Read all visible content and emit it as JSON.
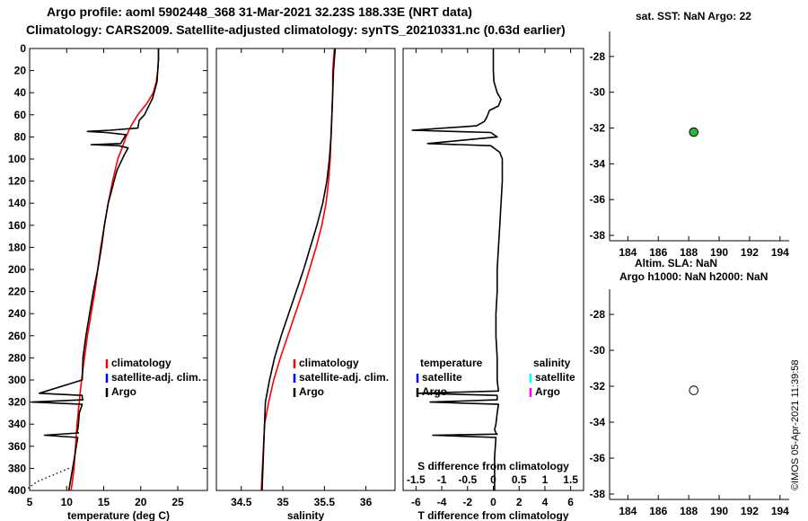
{
  "header": {
    "title_line1": "Argo profile: aoml 5902448_368 31-Mar-2021 32.23S 188.33E (NRT data)",
    "title_line2": "Climatology: CARS2009. Satellite-adjusted climatology: synTS_20210331.nc (0.63d earlier)"
  },
  "stamp": "©IMOS 05-Apr-2021 11:39:58",
  "colors": {
    "climatology": "#ff0000",
    "satellite": "#0000ff",
    "argo": "#000000",
    "satellite_salinity": "#00ffff",
    "argo_salinity": "#ff00ff",
    "map_marker": "#2db82d"
  },
  "chart_data": [
    {
      "type": "line",
      "xlabel": "temperature (deg C)",
      "ylabel": "",
      "xlim": [
        5,
        29
      ],
      "ylim": [
        400,
        0
      ],
      "x_ticks": [
        5,
        10,
        15,
        20,
        25
      ],
      "y_ticks": [
        0,
        20,
        40,
        60,
        80,
        100,
        120,
        140,
        160,
        180,
        200,
        220,
        240,
        260,
        280,
        300,
        320,
        340,
        360,
        380,
        400
      ],
      "legend": [
        "climatology",
        "satellite-adj. clim.",
        "Argo"
      ],
      "legend_position": "lower-right",
      "series": [
        {
          "name": "climatology",
          "color": "#ff0000",
          "x": [
            22.4,
            22.4,
            22.3,
            22.1,
            21.7,
            20.8,
            19.6,
            18.7,
            18.0,
            17.5,
            16.9,
            16.2,
            15.6,
            15.1,
            14.6,
            14.2,
            13.8,
            13.3,
            12.8,
            12.4,
            12.0,
            11.7,
            11.4,
            11.2,
            11.0,
            10.8,
            10.6
          ],
          "y": [
            0,
            10,
            20,
            30,
            40,
            50,
            60,
            70,
            80,
            90,
            100,
            120,
            140,
            160,
            180,
            200,
            220,
            240,
            260,
            280,
            300,
            320,
            340,
            360,
            380,
            390,
            400
          ]
        },
        {
          "name": "Argo",
          "color": "#000000",
          "x": [
            22.4,
            22.4,
            22.3,
            22.2,
            21.6,
            20.5,
            19.8,
            19.6,
            15.8,
            12.8,
            15.3,
            18.0,
            17.3,
            13.3,
            17.0,
            18.3,
            17.8,
            16.8,
            16.4,
            16.0,
            15.6,
            15.1,
            14.7,
            14.2,
            13.6,
            13.1,
            12.6,
            12.2,
            12.1,
            6.3,
            12.1,
            12.1,
            12.2,
            5.3,
            12.1,
            11.7,
            11.6,
            11.5,
            11.4,
            11.4,
            11.6,
            7.0,
            11.5,
            11.3,
            10.8,
            10.3
          ],
          "y": [
            0,
            10,
            20,
            30,
            45,
            60,
            65,
            72,
            74,
            75,
            76,
            78,
            86,
            87,
            88,
            90,
            96,
            110,
            120,
            130,
            140,
            160,
            180,
            200,
            220,
            240,
            260,
            280,
            300,
            312,
            314,
            316,
            318,
            320,
            322,
            330,
            340,
            345,
            346,
            347,
            348,
            350,
            352,
            360,
            380,
            400
          ]
        },
        {
          "name": "",
          "color": "#000000",
          "dotted": true,
          "x": [
            10.3,
            6.0,
            4.8
          ],
          "y": [
            380,
            392,
            398
          ]
        }
      ]
    },
    {
      "type": "line",
      "xlabel": "salinity",
      "ylabel": "",
      "xlim": [
        34.2,
        36.35
      ],
      "ylim": [
        400,
        0
      ],
      "x_ticks": [
        34.5,
        35,
        35.5,
        36
      ],
      "x_tick_labels": [
        "34.5",
        "35",
        "35.5",
        "36"
      ],
      "legend": [
        "climatology",
        "satellite-adj. clim.",
        "Argo"
      ],
      "legend_position": "lower-right",
      "series": [
        {
          "name": "climatology",
          "color": "#ff0000",
          "x": [
            35.62,
            35.61,
            35.6,
            35.6,
            35.59,
            35.58,
            35.57,
            35.55,
            35.52,
            35.47,
            35.4,
            35.32,
            35.24,
            35.15,
            35.06,
            34.97,
            34.89,
            34.83,
            34.78,
            34.74
          ],
          "y": [
            0,
            10,
            20,
            40,
            60,
            80,
            100,
            120,
            140,
            160,
            180,
            200,
            220,
            240,
            260,
            280,
            300,
            320,
            340,
            400
          ]
        },
        {
          "name": "Argo",
          "color": "#000000",
          "x": [
            35.63,
            35.62,
            35.61,
            35.6,
            35.59,
            35.58,
            35.56,
            35.53,
            35.48,
            35.41,
            35.33,
            35.25,
            35.16,
            35.07,
            34.98,
            34.9,
            34.84,
            34.79,
            34.75
          ],
          "y": [
            0,
            10,
            20,
            40,
            60,
            80,
            100,
            120,
            140,
            160,
            180,
            200,
            220,
            240,
            260,
            280,
            300,
            320,
            400
          ]
        }
      ]
    },
    {
      "type": "line",
      "xlabel": "T difference from climatology",
      "xlabel_top": "S difference from climatology",
      "xlim": [
        -7,
        7
      ],
      "ylim": [
        400,
        0
      ],
      "x_ticks": [
        -6,
        -4,
        -2,
        0,
        2,
        4,
        6
      ],
      "x_tick_labels": [
        "-6",
        "-4",
        "-2",
        "0",
        "2",
        "4",
        "6"
      ],
      "s_ticks": [
        -1.5,
        -1,
        -0.5,
        0,
        0.5,
        1,
        1.5
      ],
      "s_tick_labels": [
        "-1.5",
        "-1",
        "-0.5",
        "0",
        "0.5",
        "1",
        "1.5"
      ],
      "legend_groups": [
        {
          "heading": "temperature",
          "items": [
            "satellite",
            "Argo"
          ]
        },
        {
          "heading": "salinity",
          "items": [
            "satellite",
            "Argo"
          ]
        }
      ],
      "legend_position": "lower",
      "series": [
        {
          "name": "temperature Argo",
          "color": "#000000",
          "x": [
            0,
            0,
            0.05,
            0.3,
            0.6,
            0.4,
            -0.3,
            -0.5,
            -0.7,
            -1.3,
            -6.3,
            -0.2,
            0.3,
            -5.1,
            -0.2,
            0.5,
            0.7,
            0.7,
            0.6,
            0.5,
            0.4,
            0.3,
            0.3,
            0.2,
            0.2,
            0.3,
            0.3,
            0.4,
            -5.8,
            0.3,
            0.3,
            -4.9,
            0.4,
            0.3,
            0.2,
            0.1,
            0.2,
            0.3,
            -4.7,
            0.2,
            0.1,
            0.1
          ],
          "y": [
            0,
            20,
            30,
            40,
            46,
            52,
            56,
            62,
            66,
            70,
            74,
            76,
            80,
            86,
            88,
            94,
            100,
            120,
            140,
            160,
            180,
            200,
            220,
            240,
            260,
            280,
            300,
            310,
            312,
            314,
            318,
            320,
            322,
            330,
            340,
            345,
            348,
            349,
            350,
            352,
            370,
            400
          ]
        }
      ]
    },
    {
      "type": "scatter",
      "title": "sat. SST: NaN Argo: 22",
      "xlim": [
        182.8,
        194.6
      ],
      "ylim": [
        -38.3,
        -26.6
      ],
      "x_ticks": [
        184,
        186,
        188,
        190,
        192,
        194
      ],
      "y_ticks": [
        -28,
        -30,
        -32,
        -34,
        -36,
        -38
      ],
      "points": [
        {
          "x": 188.33,
          "y": -32.23,
          "color": "#2db82d"
        }
      ]
    },
    {
      "type": "scatter",
      "title": "Altim. SLA: NaN",
      "subtitle": "Argo h1000: NaN h2000: NaN",
      "xlim": [
        182.8,
        194.6
      ],
      "ylim": [
        -38.3,
        -26.6
      ],
      "x_ticks": [
        184,
        186,
        188,
        190,
        192,
        194
      ],
      "y_ticks": [
        -28,
        -30,
        -32,
        -34,
        -36,
        -38
      ],
      "points": [
        {
          "x": 188.33,
          "y": -32.23,
          "color": "#ffffff"
        }
      ]
    }
  ]
}
